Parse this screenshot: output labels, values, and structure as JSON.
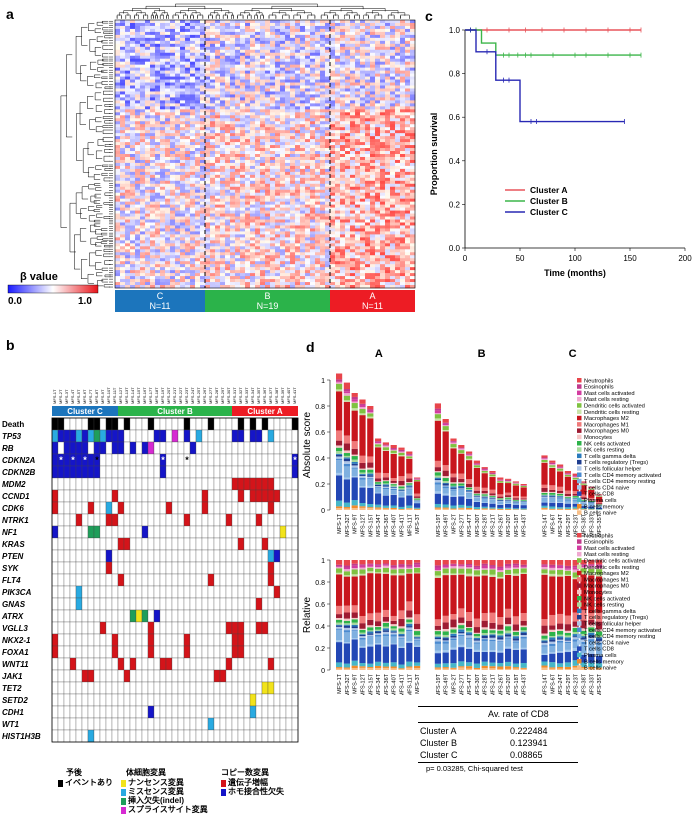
{
  "panel_labels": {
    "a": "a",
    "b": "b",
    "c": "c",
    "d": "d"
  },
  "heatmap": {
    "scale_label": "β value",
    "scale_min": "0.0",
    "scale_max": "1.0",
    "clusters": [
      {
        "name": "C",
        "n": "N=11",
        "color": "#1c75bc"
      },
      {
        "name": "B",
        "n": "N=19",
        "color": "#2bb34a"
      },
      {
        "name": "A",
        "n": "N=11",
        "color": "#ed1c24"
      }
    ]
  },
  "survival": {
    "ylabel": "Proportion survival",
    "xlabel": "Time (months)",
    "xticks": [
      "0",
      "50",
      "100",
      "150",
      "200"
    ],
    "yticks": [
      "0.0",
      "0.2",
      "0.4",
      "0.6",
      "0.8",
      "1.0"
    ],
    "legend": [
      {
        "name": "Cluster A",
        "color": "#e8555b"
      },
      {
        "name": "Cluster B",
        "color": "#3cb54a"
      },
      {
        "name": "Cluster C",
        "color": "#2828b4"
      }
    ]
  },
  "oncoprint": {
    "cluster_labels": [
      "Cluster C",
      "Cluster B",
      "Cluster A"
    ],
    "rows": [
      "Death",
      "TP53",
      "RB",
      "CDKN2A",
      "CDKN2B",
      "MDM2",
      "CCND1",
      "CDK6",
      "NTRK1",
      "NF1",
      "KRAS",
      "PTEN",
      "SYK",
      "FLT4",
      "PIK3CA",
      "GNAS",
      "ATRX",
      "VGLL3",
      "NKX2-1",
      "FOXA1",
      "WNT11",
      "JAK1",
      "TET2",
      "SETD2",
      "CDH1",
      "WT1",
      "HIST1H3B"
    ],
    "legend_prognosis_title": "予後",
    "legend_prognosis_item": "イベントあり",
    "legend_somatic_title": "体細胞変異",
    "legend_somatic_items": [
      "ナンセンス変異",
      "ミスセンス変異",
      "挿入欠失(indel)",
      "スプライスサイト変異"
    ],
    "legend_cnv_title": "コピー数変異",
    "legend_cnv_items": [
      "遺伝子増幅",
      "ホモ接合性欠失"
    ]
  },
  "immune": {
    "group_labels": [
      "A",
      "B",
      "C"
    ],
    "ylabel_top": "Absolute score",
    "ylabel_bottom": "Relative",
    "yticks_top": [
      "0",
      "0.2",
      "0.4",
      "0.6",
      "0.8",
      "1"
    ],
    "yticks_bottom": [
      "0",
      "0.2",
      "0.4",
      "0.6",
      "0.8",
      "1"
    ],
    "cell_types": [
      "Neutrophils",
      "Eosinophils",
      "Mast cells activated",
      "Mast cells resting",
      "Dendritic cells activated",
      "Dendritic cells resting",
      "Macrophages M2",
      "Macrophages M1",
      "Macrophages M0",
      "Monocytes",
      "NK cells activated",
      "NK cells resting",
      "T cells gamma delta",
      "T cells regulatory (Tregs)",
      "T cells follicular helper",
      "T cells CD4 memory activated",
      "T cells CD4 memory resting",
      "T cells CD4 naive",
      "T cells CD8",
      "Plasma cells",
      "B cells memory",
      "B cells naive"
    ],
    "cell_colors": [
      "#e8454b",
      "#c23a8c",
      "#d33ca0",
      "#f0a8d0",
      "#7fc241",
      "#c9e3a8",
      "#c8161d",
      "#f07a7a",
      "#9e1b32",
      "#f7c7c7",
      "#2db34a",
      "#a7d99b",
      "#2a7bbd",
      "#1e3d8f",
      "#b0c7e8",
      "#4a8ad0",
      "#7fb0e0",
      "#a3c9ee",
      "#2247b5",
      "#46b7c8",
      "#f08c2a",
      "#f9c089"
    ],
    "samples_A": [
      "MFS-1T",
      "MFS-32T",
      "MFS-9T",
      "MFS-12T",
      "MFS-15T",
      "MFS-34T",
      "MFS-36T",
      "MFS-40T",
      "MFS-41T",
      "MFS-11T",
      "MFS-3T"
    ],
    "samples_B": [
      "MFS-19T",
      "MFS-49T",
      "MFS-2T",
      "MFS-27T",
      "MFS-47T",
      "MFS-30T",
      "MFS-28T",
      "MFS-21T",
      "MFS-26T",
      "MFS-20T",
      "MFS-18T",
      "MFS-43T"
    ],
    "samples_C": [
      "MFS-14T",
      "MFS-6T",
      "MFS-24T",
      "MFS-29T",
      "MFS-23T",
      "MFS-38T",
      "MFS-33T",
      "MFS-35T"
    ],
    "abs_A": [
      1.05,
      0.98,
      0.9,
      0.85,
      0.8,
      0.55,
      0.52,
      0.5,
      0.48,
      0.45,
      0.25
    ],
    "abs_B": [
      0.82,
      0.7,
      0.55,
      0.5,
      0.45,
      0.38,
      0.33,
      0.3,
      0.25,
      0.24,
      0.22,
      0.2
    ],
    "abs_C": [
      0.42,
      0.38,
      0.35,
      0.3,
      0.28,
      0.22,
      0.18,
      0.12
    ]
  },
  "cd8_table": {
    "header": "Av. rate of CD8",
    "rows": [
      {
        "cluster": "Cluster A",
        "value": "0.222484"
      },
      {
        "cluster": "Cluster B",
        "value": "0.123941"
      },
      {
        "cluster": "Cluster C",
        "value": "0.08865"
      }
    ],
    "footnote": "p= 0.03285, Chi-squared test"
  }
}
